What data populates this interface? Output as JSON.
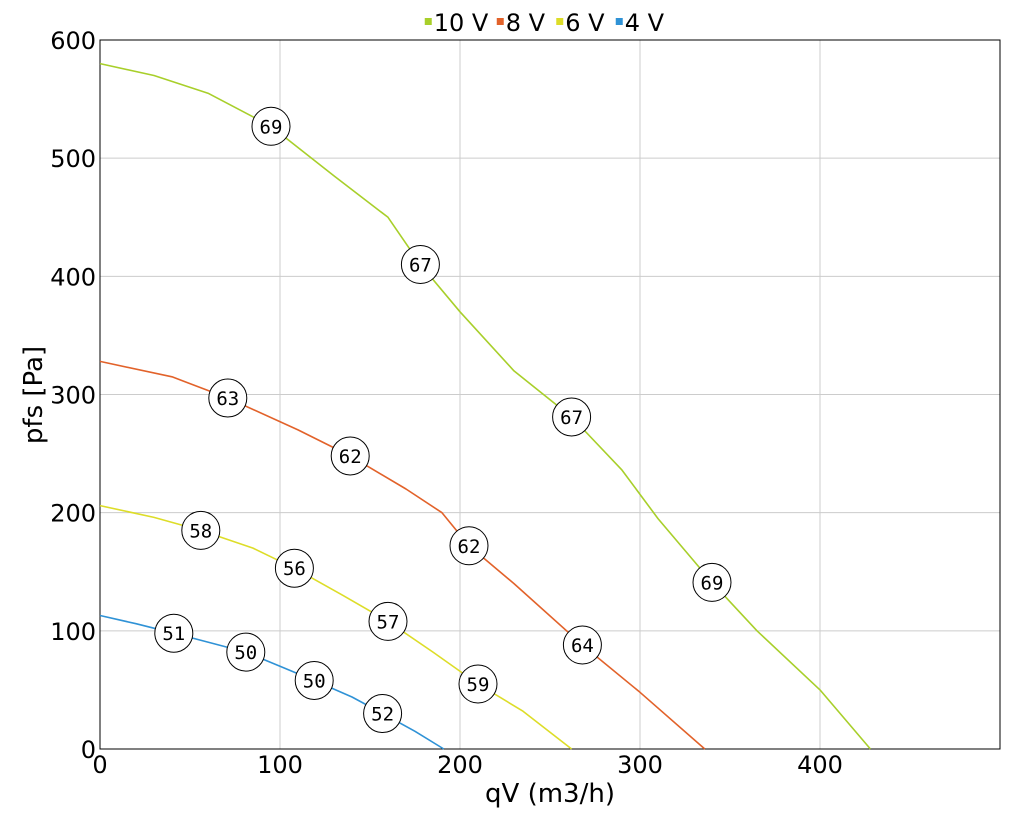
{
  "chart_data": {
    "type": "line",
    "xlabel": "qV (m3/h)",
    "ylabel": "pfs [Pa]",
    "xlim": [
      0,
      500
    ],
    "ylim": [
      0,
      600
    ],
    "xticks": [
      0,
      100,
      200,
      300,
      400
    ],
    "yticks": [
      0,
      100,
      200,
      300,
      400,
      500,
      600
    ],
    "grid": true,
    "legend": "top-center",
    "series": [
      {
        "name": "10 V",
        "color": "#a8cf2a",
        "points": [
          [
            0,
            580
          ],
          [
            30,
            570
          ],
          [
            60,
            555
          ],
          [
            95,
            527
          ],
          [
            130,
            485
          ],
          [
            160,
            450
          ],
          [
            178,
            410
          ],
          [
            200,
            370
          ],
          [
            230,
            320
          ],
          [
            262,
            281
          ],
          [
            290,
            236
          ],
          [
            310,
            195
          ],
          [
            340,
            141
          ],
          [
            365,
            100
          ],
          [
            400,
            50
          ],
          [
            428,
            0
          ]
        ],
        "markers": [
          {
            "x": 95,
            "y": 527,
            "label": "69"
          },
          {
            "x": 178,
            "y": 410,
            "label": "67"
          },
          {
            "x": 262,
            "y": 281,
            "label": "67"
          },
          {
            "x": 340,
            "y": 141,
            "label": "69"
          }
        ]
      },
      {
        "name": "8 V",
        "color": "#e2622a",
        "points": [
          [
            0,
            328
          ],
          [
            40,
            315
          ],
          [
            71,
            297
          ],
          [
            110,
            270
          ],
          [
            139,
            248
          ],
          [
            170,
            220
          ],
          [
            190,
            200
          ],
          [
            205,
            172
          ],
          [
            230,
            140
          ],
          [
            268,
            88
          ],
          [
            300,
            48
          ],
          [
            336,
            0
          ]
        ],
        "markers": [
          {
            "x": 71,
            "y": 297,
            "label": "63"
          },
          {
            "x": 139,
            "y": 248,
            "label": "62"
          },
          {
            "x": 205,
            "y": 172,
            "label": "62"
          },
          {
            "x": 268,
            "y": 88,
            "label": "64"
          }
        ]
      },
      {
        "name": "6 V",
        "color": "#dddd28",
        "points": [
          [
            0,
            206
          ],
          [
            30,
            196
          ],
          [
            56,
            185
          ],
          [
            85,
            170
          ],
          [
            108,
            153
          ],
          [
            135,
            130
          ],
          [
            160,
            108
          ],
          [
            185,
            82
          ],
          [
            210,
            55
          ],
          [
            235,
            32
          ],
          [
            262,
            0
          ]
        ],
        "markers": [
          {
            "x": 56,
            "y": 185,
            "label": "58"
          },
          {
            "x": 108,
            "y": 153,
            "label": "56"
          },
          {
            "x": 160,
            "y": 108,
            "label": "57"
          },
          {
            "x": 210,
            "y": 55,
            "label": "59"
          }
        ]
      },
      {
        "name": "4 V",
        "color": "#2f92d6",
        "points": [
          [
            0,
            113
          ],
          [
            20,
            106
          ],
          [
            41,
            98
          ],
          [
            61,
            90
          ],
          [
            81,
            82
          ],
          [
            100,
            70
          ],
          [
            119,
            58
          ],
          [
            140,
            44
          ],
          [
            157,
            30
          ],
          [
            175,
            15
          ],
          [
            191,
            0
          ]
        ],
        "markers": [
          {
            "x": 41,
            "y": 98,
            "label": "51"
          },
          {
            "x": 81,
            "y": 82,
            "label": "50"
          },
          {
            "x": 119,
            "y": 58,
            "label": "50"
          },
          {
            "x": 157,
            "y": 30,
            "label": "52"
          }
        ]
      }
    ]
  }
}
